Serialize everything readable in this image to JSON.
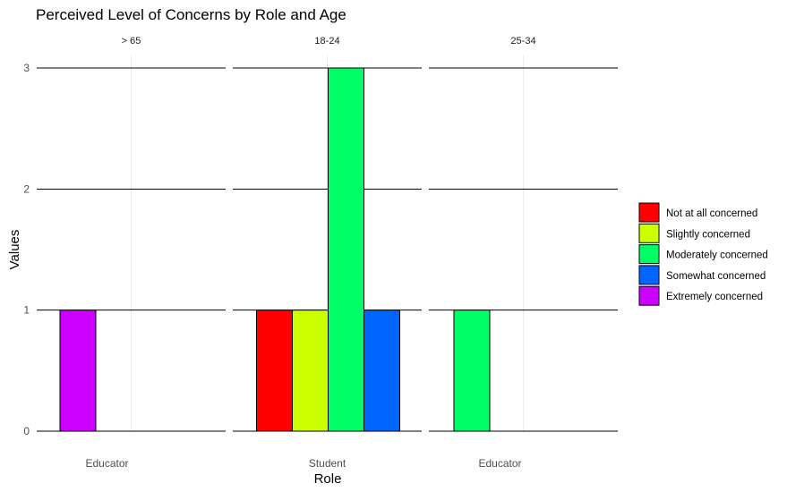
{
  "chart_data": {
    "type": "bar",
    "title": "Perceived Level of Concerns by Role and Age",
    "xlabel": "Role",
    "ylabel": "Values",
    "ylim": [
      0,
      3
    ],
    "yticks": [
      0,
      1,
      2,
      3
    ],
    "legend_position": "right",
    "grid": true,
    "legend": [
      {
        "name": "Not at all concerned",
        "color": "#ff0000"
      },
      {
        "name": "Slightly concerned",
        "color": "#ccff00"
      },
      {
        "name": "Moderately concerned",
        "color": "#00ff66"
      },
      {
        "name": "Somewhat concerned",
        "color": "#0066ff"
      },
      {
        "name": "Extremely concerned",
        "color": "#cc00ff"
      }
    ],
    "facets": [
      {
        "label": "> 65",
        "category": "Educator",
        "bars": [
          {
            "series": "Extremely concerned",
            "value": 1
          }
        ]
      },
      {
        "label": "18-24",
        "category": "Student",
        "bars": [
          {
            "series": "Not at all concerned",
            "value": 1
          },
          {
            "series": "Slightly concerned",
            "value": 1
          },
          {
            "series": "Moderately concerned",
            "value": 3
          },
          {
            "series": "Somewhat concerned",
            "value": 1
          }
        ]
      },
      {
        "label": "25-34",
        "category": "Educator",
        "bars": [
          {
            "series": "Moderately concerned",
            "value": 1
          }
        ]
      }
    ]
  }
}
